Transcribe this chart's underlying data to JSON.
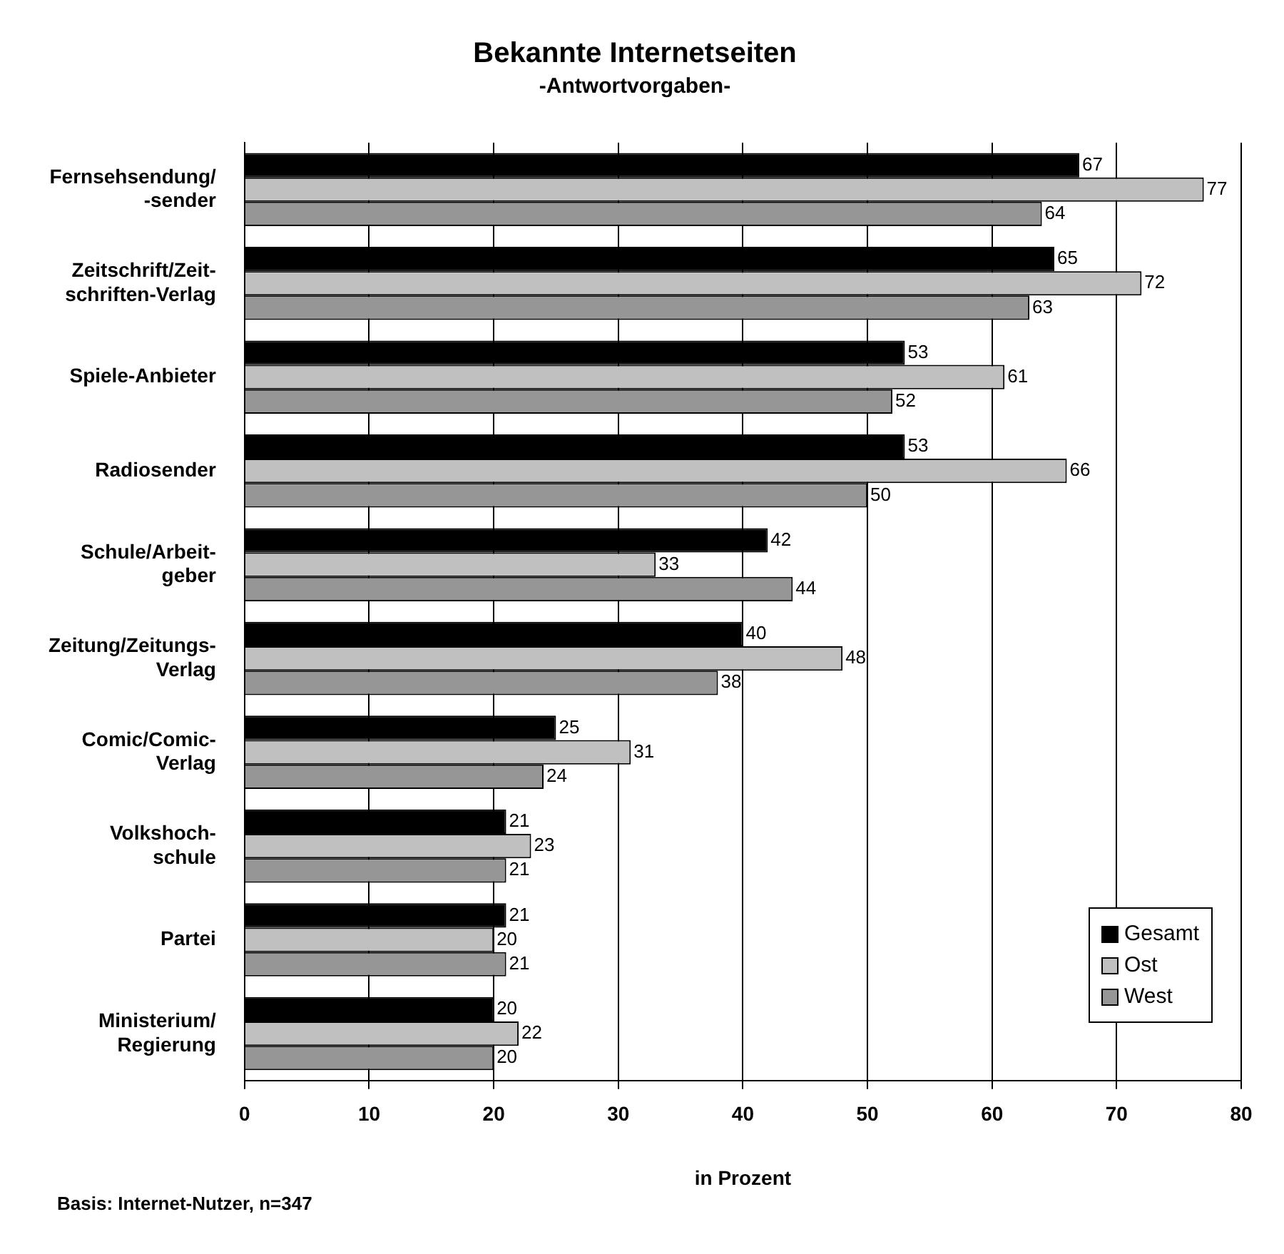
{
  "chart_data": {
    "type": "bar",
    "orientation": "horizontal",
    "title": "Bekannte Internetseiten",
    "subtitle": "-Antwortvorgaben-",
    "xlabel": "in Prozent",
    "categories": [
      "Fernsehsendung/\n-sender",
      "Zeitschrift/Zeit-\nschriften-Verlag",
      "Spiele-Anbieter",
      "Radiosender",
      "Schule/Arbeit-\ngeber",
      "Zeitung/Zeitungs-\nVerlag",
      "Comic/Comic-\nVerlag",
      "Volkshoch-\nschule",
      "Partei",
      "Ministerium/\nRegierung"
    ],
    "series": [
      {
        "name": "Gesamt",
        "color": "#000000",
        "values": [
          67,
          65,
          53,
          53,
          42,
          40,
          25,
          21,
          21,
          20
        ]
      },
      {
        "name": "Ost",
        "color": "#c0c0c0",
        "values": [
          77,
          72,
          61,
          66,
          33,
          48,
          31,
          23,
          20,
          22
        ]
      },
      {
        "name": "West",
        "color": "#969696",
        "values": [
          64,
          63,
          52,
          50,
          44,
          38,
          24,
          21,
          21,
          20
        ]
      }
    ],
    "xlim": [
      0,
      80
    ],
    "xticks": [
      0,
      10,
      20,
      30,
      40,
      50,
      60,
      70,
      80
    ],
    "grid": "x",
    "legend": "bottom right",
    "data_labels": true,
    "annotations": [
      "Basis: Internet-Nutzer, n=347"
    ]
  }
}
